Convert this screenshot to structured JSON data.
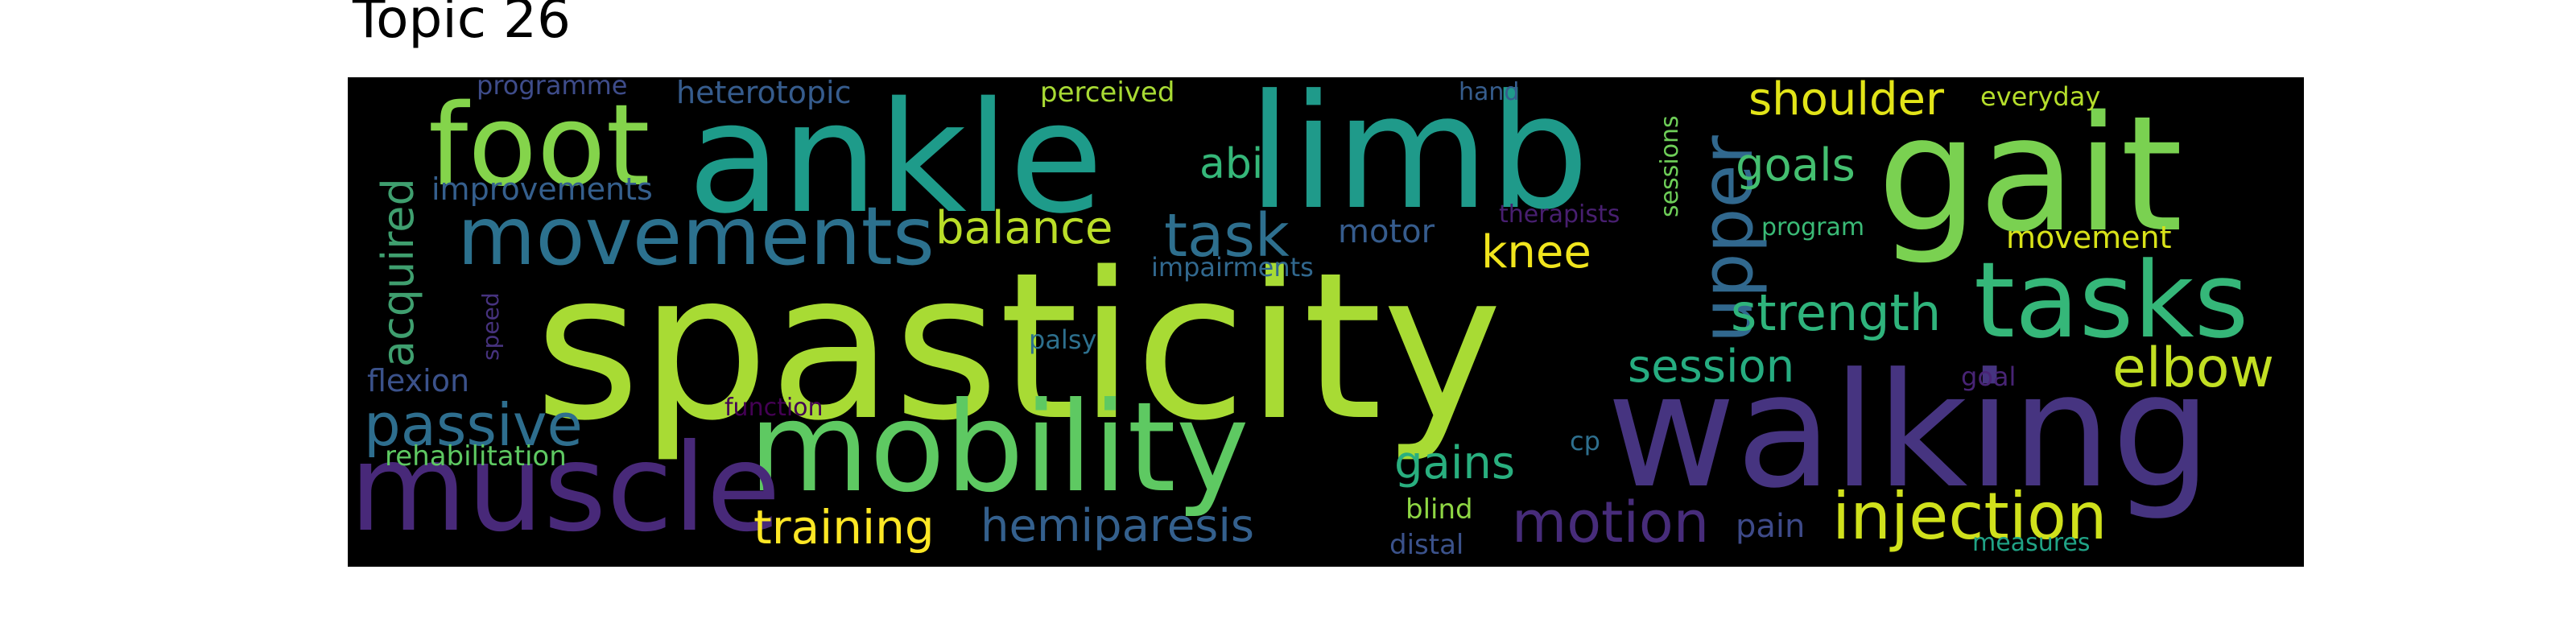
{
  "title": "Topic 26",
  "words": [
    {
      "text": "spasticity",
      "color": "#a8db34"
    },
    {
      "text": "walking",
      "color": "#463480"
    },
    {
      "text": "limb",
      "color": "#1f9a8a"
    },
    {
      "text": "ankle",
      "color": "#1e9b8a"
    },
    {
      "text": "gait",
      "color": "#7ad151"
    },
    {
      "text": "mobility",
      "color": "#5ec962"
    },
    {
      "text": "muscle",
      "color": "#482979"
    },
    {
      "text": "foot",
      "color": "#84d44b"
    },
    {
      "text": "movements",
      "color": "#2c718e"
    },
    {
      "text": "tasks",
      "color": "#35b779"
    },
    {
      "text": "upper",
      "color": "#31688e"
    },
    {
      "text": "injection",
      "color": "#d0e11c"
    },
    {
      "text": "passive",
      "color": "#2e6e8e"
    },
    {
      "text": "motion",
      "color": "#472c7a"
    },
    {
      "text": "training",
      "color": "#fde725"
    },
    {
      "text": "hemiparesis",
      "color": "#34608d"
    },
    {
      "text": "elbow",
      "color": "#c2df23"
    },
    {
      "text": "strength",
      "color": "#2fb47c"
    },
    {
      "text": "task",
      "color": "#2e6f8e"
    },
    {
      "text": "balance",
      "color": "#bade28"
    },
    {
      "text": "session",
      "color": "#26ad81"
    },
    {
      "text": "gains",
      "color": "#29af7f"
    },
    {
      "text": "acquired",
      "color": "#3f9f6f"
    },
    {
      "text": "shoulder",
      "color": "#e2e418"
    },
    {
      "text": "goals",
      "color": "#44bf70"
    },
    {
      "text": "knee",
      "color": "#f1e51d"
    },
    {
      "text": "abi",
      "color": "#35b779"
    },
    {
      "text": "movement",
      "color": "#d8e219"
    },
    {
      "text": "improvements",
      "color": "#355f8d"
    },
    {
      "text": "flexion",
      "color": "#3b528b"
    },
    {
      "text": "rehabilitation",
      "color": "#5ec962"
    },
    {
      "text": "heterotopic",
      "color": "#365c8d"
    },
    {
      "text": "motor",
      "color": "#365c8d"
    },
    {
      "text": "pain",
      "color": "#3e4a89"
    },
    {
      "text": "perceived",
      "color": "#a8db34"
    },
    {
      "text": "programme",
      "color": "#3e4c8a"
    },
    {
      "text": "impairments",
      "color": "#31688e"
    },
    {
      "text": "palsy",
      "color": "#2d708e"
    },
    {
      "text": "everyday",
      "color": "#b5de2b"
    },
    {
      "text": "program",
      "color": "#3aba76"
    },
    {
      "text": "sessions",
      "color": "#6ece58"
    },
    {
      "text": "therapists",
      "color": "#481f70"
    },
    {
      "text": "function",
      "color": "#440154"
    },
    {
      "text": "speed",
      "color": "#46327e"
    },
    {
      "text": "cp",
      "color": "#2e6f8e"
    },
    {
      "text": "hand",
      "color": "#365d8d"
    },
    {
      "text": "blind",
      "color": "#8fd744"
    },
    {
      "text": "distal",
      "color": "#3b528b"
    },
    {
      "text": "goal",
      "color": "#482475"
    },
    {
      "text": "measures",
      "color": "#20a386"
    }
  ]
}
